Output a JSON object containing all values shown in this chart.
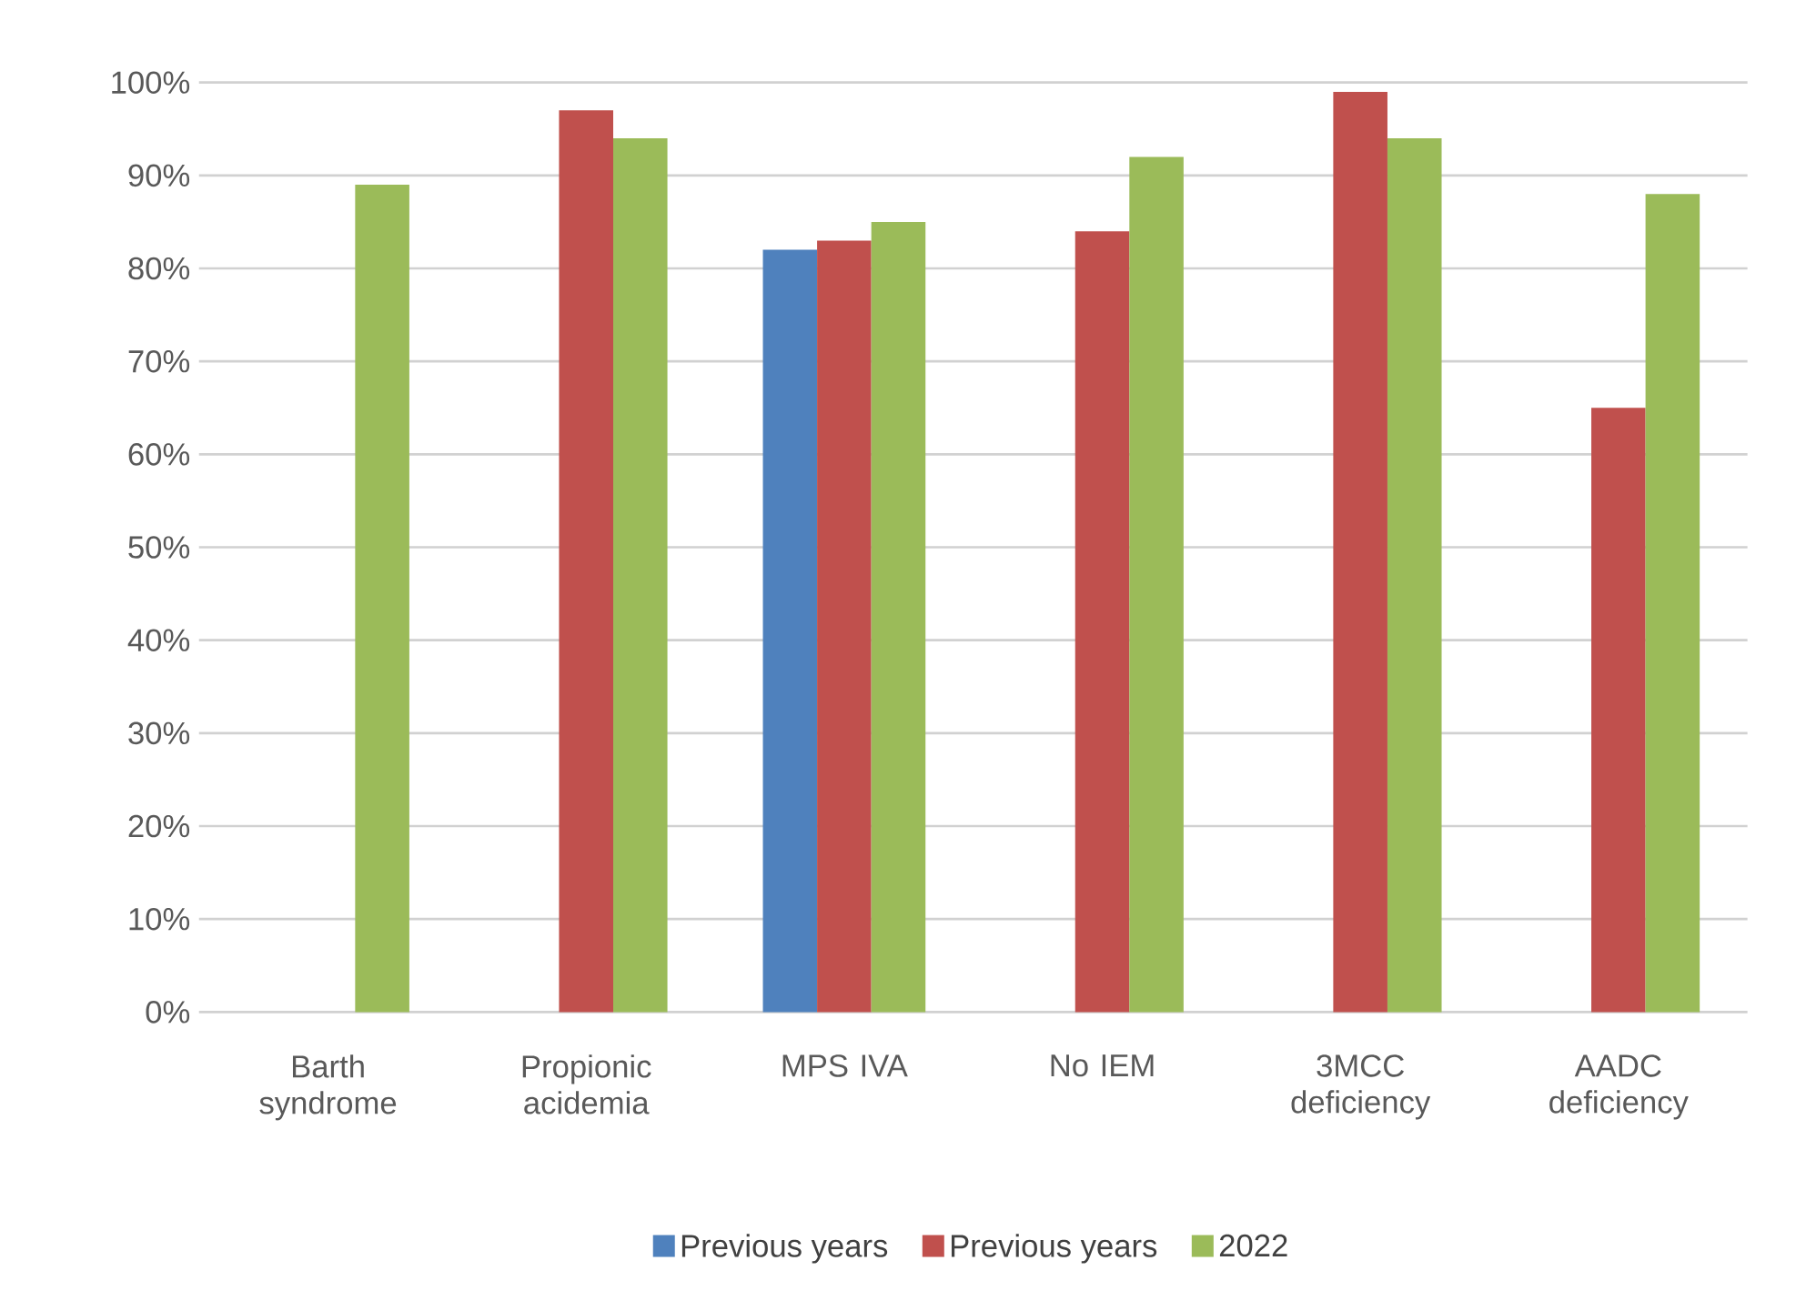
{
  "chart_data": {
    "type": "bar",
    "categories": [
      "Barth syndrome",
      "Propionic acidemia",
      "MPS IVA",
      "No IEM",
      "3MCC deficiency",
      "AADC deficiency"
    ],
    "series": [
      {
        "name": "Previous years",
        "color": "#4f81bd",
        "values": [
          null,
          null,
          82,
          null,
          null,
          null
        ]
      },
      {
        "name": "Previous years",
        "color": "#c0504d",
        "values": [
          null,
          97,
          83,
          84,
          99,
          65
        ]
      },
      {
        "name": "2022",
        "color": "#9bbb59",
        "values": [
          89,
          94,
          85,
          92,
          94,
          88
        ]
      }
    ],
    "ylim": [
      0,
      100
    ],
    "yticks": [
      {
        "value": 0,
        "label": "0%"
      },
      {
        "value": 10,
        "label": "10%"
      },
      {
        "value": 20,
        "label": "20%"
      },
      {
        "value": 30,
        "label": "30%"
      },
      {
        "value": 40,
        "label": "40%"
      },
      {
        "value": 50,
        "label": "50%"
      },
      {
        "value": 60,
        "label": "60%"
      },
      {
        "value": 70,
        "label": "70%"
      },
      {
        "value": 80,
        "label": "80%"
      },
      {
        "value": 90,
        "label": "90%"
      },
      {
        "value": 100,
        "label": "100%"
      }
    ],
    "grid": "y",
    "legend": "bottom"
  }
}
